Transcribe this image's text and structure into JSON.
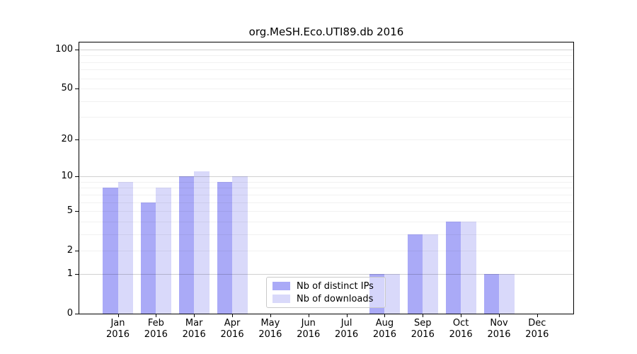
{
  "chart_data": {
    "type": "bar",
    "title": "org.MeSH.Eco.UTI89.db 2016",
    "categories": [
      "Jan",
      "Feb",
      "Mar",
      "Apr",
      "May",
      "Jun",
      "Jul",
      "Aug",
      "Sep",
      "Oct",
      "Nov",
      "Dec"
    ],
    "category_year": "2016",
    "series": [
      {
        "name": "Nb of distinct IPs",
        "color": "#aaaaf7",
        "values": [
          8,
          6,
          10,
          9,
          0,
          0,
          0,
          1,
          3,
          4,
          1,
          0
        ]
      },
      {
        "name": "Nb of downloads",
        "color": "#d9d9fa",
        "values": [
          9,
          8,
          11,
          10,
          0,
          0,
          0,
          1,
          3,
          4,
          1,
          0
        ]
      }
    ],
    "xlabel": "",
    "ylabel": "",
    "ylim": [
      0,
      100
    ],
    "y_scale": "log10(value+1)",
    "y_tick_labels": [
      "0",
      "1",
      "2",
      "5",
      "10",
      "20",
      "50",
      "100"
    ],
    "y_ticks": [
      0,
      1,
      2,
      5,
      10,
      20,
      50,
      100
    ],
    "y_major_gridlines": [
      1,
      10,
      100
    ],
    "y_minor_gridlines": [
      2,
      3,
      4,
      5,
      6,
      7,
      8,
      9,
      20,
      30,
      40,
      50,
      60,
      70,
      80,
      90
    ],
    "grid": true,
    "legend_position": "inside-bottom-center"
  }
}
